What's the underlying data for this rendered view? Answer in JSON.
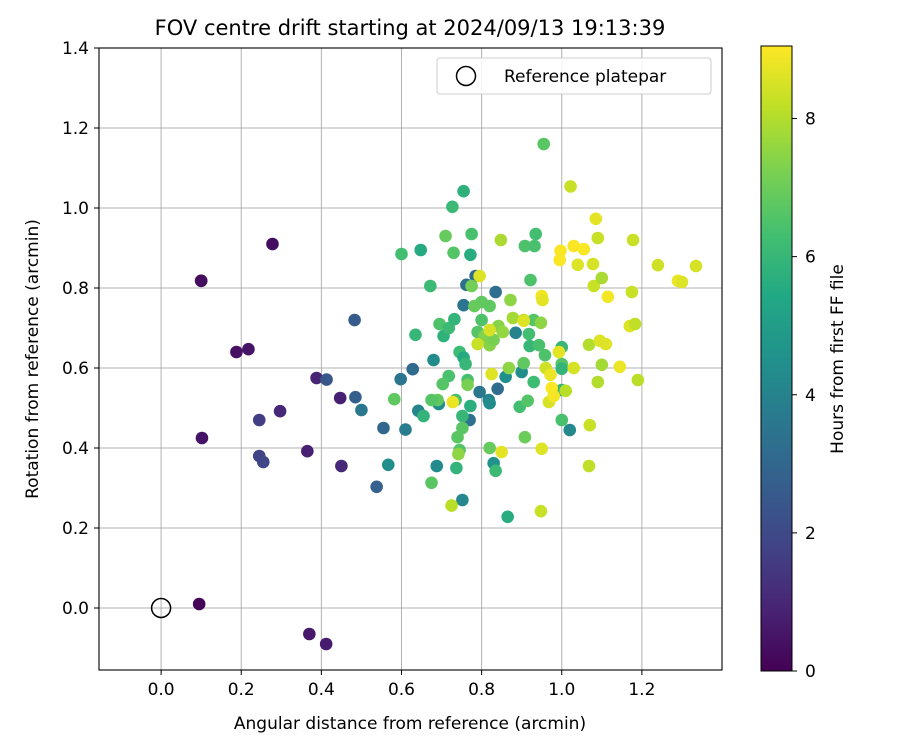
{
  "chart_data": {
    "type": "scatter",
    "title": "FOV centre drift starting at 2024/09/13 19:13:39",
    "xlabel": "Angular distance from reference (arcmin)",
    "ylabel": "Rotation from reference (arcmin)",
    "xlim": [
      -0.155,
      1.4
    ],
    "ylim": [
      -0.155,
      1.4
    ],
    "xticks": [
      "0.0",
      "0.2",
      "0.4",
      "0.6",
      "0.8",
      "1.0",
      "1.2"
    ],
    "xtick_values": [
      0,
      0.2,
      0.4,
      0.6,
      0.8,
      1.0,
      1.2
    ],
    "yticks": [
      "0.0",
      "0.2",
      "0.4",
      "0.6",
      "0.8",
      "1.0",
      "1.2",
      "1.4"
    ],
    "ytick_values": [
      0,
      0.2,
      0.4,
      0.6,
      0.8,
      1.0,
      1.2,
      1.4
    ],
    "grid": true,
    "legend": {
      "placement": "top-right",
      "entries": [
        "Reference platepar"
      ]
    },
    "reference_point": {
      "x": 0.0,
      "y": 0.0,
      "label": "Reference platepar"
    },
    "colorbar": {
      "label": "Hours from first FF file",
      "colormap": "viridis",
      "range": [
        0,
        9.05
      ],
      "ticks": [
        "0",
        "2",
        "4",
        "6",
        "8"
      ],
      "tick_values": [
        0,
        2,
        4,
        6,
        8
      ]
    },
    "series": [
      {
        "points": [
          [
            0.095,
            0.01,
            0.1
          ],
          [
            0.1,
            0.818,
            0.2
          ],
          [
            0.1,
            0.818,
            0.3
          ],
          [
            0.102,
            0.425,
            0.5
          ],
          [
            0.188,
            0.64,
            0.4
          ],
          [
            0.218,
            0.647,
            0.5
          ],
          [
            0.278,
            0.91,
            0.3
          ],
          [
            0.37,
            -0.065,
            0.6
          ],
          [
            0.412,
            -0.09,
            0.7
          ],
          [
            0.297,
            0.492,
            1.0
          ],
          [
            0.365,
            0.392,
            0.8
          ],
          [
            0.388,
            0.575,
            0.9
          ],
          [
            0.447,
            0.525,
            0.8
          ],
          [
            0.45,
            0.355,
            1.0
          ],
          [
            0.245,
            0.47,
            1.6
          ],
          [
            0.245,
            0.38,
            1.8
          ],
          [
            0.255,
            0.365,
            1.9
          ],
          [
            0.413,
            0.571,
            2.4
          ],
          [
            0.483,
            0.72,
            2.6
          ],
          [
            0.485,
            0.527,
            2.7
          ],
          [
            0.538,
            0.303,
            2.8
          ],
          [
            0.555,
            0.45,
            3.0
          ],
          [
            0.628,
            0.597,
            3.1
          ],
          [
            0.5,
            0.495,
            3.6
          ],
          [
            0.598,
            0.572,
            3.5
          ],
          [
            0.61,
            0.446,
            3.8
          ],
          [
            0.642,
            0.493,
            4.1
          ],
          [
            0.567,
            0.358,
            4.4
          ],
          [
            0.648,
            0.895,
            5.5
          ],
          [
            0.688,
            0.355,
            4.3
          ],
          [
            0.68,
            0.62,
            4.3
          ],
          [
            0.693,
            0.51,
            4.4
          ],
          [
            0.752,
            0.27,
            4.2
          ],
          [
            0.755,
            0.757,
            3.5
          ],
          [
            0.77,
            0.47,
            3.4
          ],
          [
            0.762,
            0.808,
            3.3
          ],
          [
            0.83,
            0.362,
            4.6
          ],
          [
            0.835,
            0.79,
            3.3
          ],
          [
            0.84,
            0.548,
            3.2
          ],
          [
            0.818,
            0.52,
            4.0
          ],
          [
            0.82,
            0.512,
            4.3
          ],
          [
            0.795,
            0.54,
            3.6
          ],
          [
            0.785,
            0.83,
            3.1
          ],
          [
            0.86,
            0.578,
            4.5
          ],
          [
            0.865,
            0.228,
            5.6
          ],
          [
            0.885,
            0.688,
            4.0
          ],
          [
            0.9,
            0.59,
            4.4
          ],
          [
            1.0,
            0.545,
            6.0
          ],
          [
            1.0,
            0.47,
            6.4
          ],
          [
            1.0,
            0.652,
            6.0
          ],
          [
            1.0,
            0.61,
            6.6
          ],
          [
            1.0,
            0.598,
            5.9
          ],
          [
            1.02,
            0.445,
            4.2
          ],
          [
            0.955,
            1.16,
            6.7
          ],
          [
            0.71,
            0.93,
            6.9
          ],
          [
            0.727,
            1.003,
            6.1
          ],
          [
            0.755,
            1.042,
            5.8
          ],
          [
            0.73,
            0.888,
            6.6
          ],
          [
            0.772,
            0.883,
            5.6
          ],
          [
            0.775,
            0.935,
            6.4
          ],
          [
            0.6,
            0.885,
            6.3
          ],
          [
            0.672,
            0.805,
            6.1
          ],
          [
            0.695,
            0.71,
            6.5
          ],
          [
            0.705,
            0.68,
            5.8
          ],
          [
            0.718,
            0.7,
            6.1
          ],
          [
            0.732,
            0.722,
            5.9
          ],
          [
            0.745,
            0.64,
            6.2
          ],
          [
            0.755,
            0.626,
            5.5
          ],
          [
            0.76,
            0.61,
            6.0
          ],
          [
            0.765,
            0.57,
            6.4
          ],
          [
            0.772,
            0.505,
            5.7
          ],
          [
            0.752,
            0.48,
            6.0
          ],
          [
            0.735,
            0.52,
            6.3
          ],
          [
            0.718,
            0.58,
            6.4
          ],
          [
            0.703,
            0.56,
            6.6
          ],
          [
            0.69,
            0.52,
            6.8
          ],
          [
            0.675,
            0.52,
            6.6
          ],
          [
            0.655,
            0.48,
            5.9
          ],
          [
            0.635,
            0.683,
            6.0
          ],
          [
            0.582,
            0.522,
            6.8
          ],
          [
            0.675,
            0.313,
            6.7
          ],
          [
            0.737,
            0.35,
            5.9
          ],
          [
            0.74,
            0.427,
            6.7
          ],
          [
            0.745,
            0.395,
            6.6
          ],
          [
            0.752,
            0.45,
            6.7
          ],
          [
            0.82,
            0.4,
            6.9
          ],
          [
            0.835,
            0.343,
            6.1
          ],
          [
            0.908,
            0.427,
            7.0
          ],
          [
            0.895,
            0.503,
            6.3
          ],
          [
            0.915,
            0.518,
            6.6
          ],
          [
            0.93,
            0.565,
            6.2
          ],
          [
            0.92,
            0.655,
            6.0
          ],
          [
            0.943,
            0.657,
            6.4
          ],
          [
            0.958,
            0.632,
            6.5
          ],
          [
            0.905,
            0.612,
            6.8
          ],
          [
            0.918,
            0.685,
            6.3
          ],
          [
            0.93,
            0.72,
            6.6
          ],
          [
            0.948,
            0.713,
            7.5
          ],
          [
            0.935,
            0.935,
            6.3
          ],
          [
            0.908,
            0.905,
            6.5
          ],
          [
            0.932,
            0.905,
            6.4
          ],
          [
            0.922,
            0.82,
            6.5
          ],
          [
            0.848,
            0.92,
            7.9
          ],
          [
            0.8,
            0.72,
            6.5
          ],
          [
            0.79,
            0.69,
            6.6
          ],
          [
            0.8,
            0.765,
            6.8
          ],
          [
            0.782,
            0.755,
            6.9
          ],
          [
            0.775,
            0.805,
            7.1
          ],
          [
            0.807,
            0.68,
            7.3
          ],
          [
            0.82,
            0.657,
            7.4
          ],
          [
            0.83,
            0.67,
            7.2
          ],
          [
            0.842,
            0.705,
            7.4
          ],
          [
            0.853,
            0.69,
            7.6
          ],
          [
            0.868,
            0.6,
            7.5
          ],
          [
            0.872,
            0.77,
            7.5
          ],
          [
            0.878,
            0.725,
            7.8
          ],
          [
            0.825,
            0.585,
            8.6
          ],
          [
            0.85,
            0.39,
            8.7
          ],
          [
            0.725,
            0.256,
            8.1
          ],
          [
            0.728,
            0.515,
            8.8
          ],
          [
            0.742,
            0.385,
            7.5
          ],
          [
            0.765,
            0.558,
            7.2
          ],
          [
            0.82,
            0.755,
            6.8
          ],
          [
            0.795,
            0.83,
            8.6
          ],
          [
            0.79,
            0.66,
            8.3
          ],
          [
            0.82,
            0.695,
            8.5
          ],
          [
            0.905,
            0.72,
            8.0
          ],
          [
            0.905,
            0.718,
            8.6
          ],
          [
            0.948,
            0.242,
            8.3
          ],
          [
            0.95,
            0.398,
            8.6
          ],
          [
            0.95,
            0.78,
            8.9
          ],
          [
            0.952,
            0.77,
            8.7
          ],
          [
            0.96,
            0.6,
            8.4
          ],
          [
            0.968,
            0.515,
            8.5
          ],
          [
            0.972,
            0.583,
            8.8
          ],
          [
            0.975,
            0.55,
            9.0
          ],
          [
            0.98,
            0.53,
            8.9
          ],
          [
            0.993,
            0.64,
            8.7
          ],
          [
            0.995,
            0.87,
            9.0
          ],
          [
            0.997,
            0.893,
            9.0
          ],
          [
            1.01,
            0.543,
            8.1
          ],
          [
            1.022,
            1.054,
            8.3
          ],
          [
            1.03,
            0.6,
            8.5
          ],
          [
            1.03,
            0.905,
            9.0
          ],
          [
            1.04,
            0.858,
            8.6
          ],
          [
            1.055,
            0.897,
            9.0
          ],
          [
            1.068,
            0.658,
            8.0
          ],
          [
            1.068,
            0.355,
            8.2
          ],
          [
            1.07,
            0.457,
            8.3
          ],
          [
            1.078,
            0.86,
            8.5
          ],
          [
            1.08,
            0.805,
            8.3
          ],
          [
            1.085,
            0.973,
            8.7
          ],
          [
            1.09,
            0.925,
            8.3
          ],
          [
            1.09,
            0.565,
            8.0
          ],
          [
            1.095,
            0.668,
            8.6
          ],
          [
            1.1,
            0.825,
            7.9
          ],
          [
            1.1,
            0.608,
            7.8
          ],
          [
            1.11,
            0.66,
            8.6
          ],
          [
            1.115,
            0.778,
            8.9
          ],
          [
            1.145,
            0.603,
            8.8
          ],
          [
            1.17,
            0.705,
            8.6
          ],
          [
            1.175,
            0.79,
            8.3
          ],
          [
            1.178,
            0.92,
            8.3
          ],
          [
            1.183,
            0.71,
            8.2
          ],
          [
            1.19,
            0.57,
            8.1
          ],
          [
            1.24,
            0.857,
            8.4
          ],
          [
            1.29,
            0.818,
            8.8
          ],
          [
            1.3,
            0.815,
            8.6
          ],
          [
            1.335,
            0.855,
            8.5
          ]
        ]
      }
    ]
  }
}
